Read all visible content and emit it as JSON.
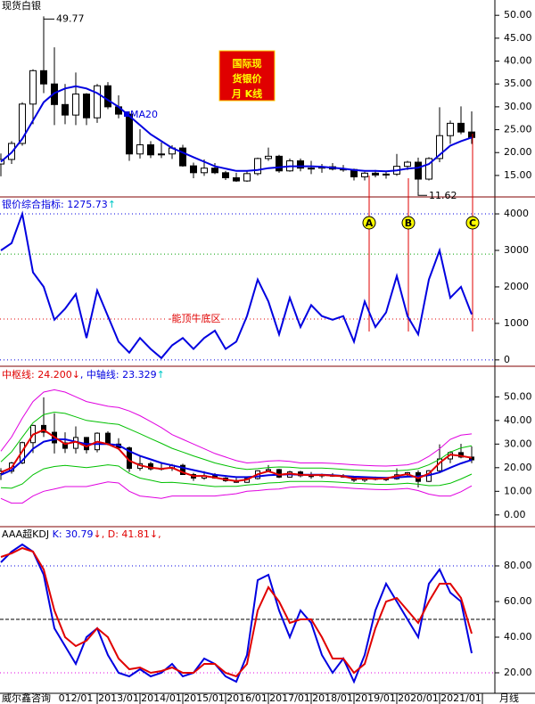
{
  "chart_data": [
    {
      "type": "candlestick",
      "title": "现货白银",
      "open": [
        17.5,
        18.5,
        22,
        30.6,
        37.9,
        35,
        30.5,
        28.2,
        32.8,
        27.6,
        34.6,
        30,
        28.4,
        19.7,
        21.7,
        19.5,
        19.7,
        21,
        17.1,
        15.6,
        16.6,
        15.6,
        14.5,
        13.8,
        15.4,
        18.7,
        19.2,
        16,
        18.2,
        16.6,
        16.6,
        16.9,
        16.4,
        16.3,
        14.7,
        15.5,
        15.1,
        15.3,
        17,
        17.9,
        14.2,
        18.7,
        23.7,
        26.4,
        24.5
      ],
      "high": [
        19.8,
        22.5,
        31,
        38.2,
        49.77,
        43,
        35,
        37.5,
        33,
        35,
        35.4,
        32.5,
        29,
        25.1,
        22.5,
        22.2,
        21.6,
        21.7,
        17.8,
        18.5,
        17.7,
        16,
        15.6,
        16,
        18.9,
        21.1,
        19.5,
        18.7,
        18.7,
        18.2,
        17.5,
        17.7,
        17.3,
        16.5,
        15.8,
        16.2,
        15.9,
        19.7,
        18.2,
        18.9,
        19,
        29.9,
        27,
        30.1,
        29
      ],
      "low": [
        14.8,
        17.5,
        21.5,
        26.2,
        33,
        26,
        26.2,
        26,
        26,
        26.5,
        29.5,
        27.5,
        18.2,
        18.7,
        18.8,
        18.8,
        18.6,
        16.9,
        14.4,
        14.9,
        15.3,
        14,
        13.6,
        13.6,
        15,
        18.2,
        15.6,
        15.8,
        15.9,
        15.3,
        15.6,
        16.1,
        15.8,
        13.9,
        13.9,
        14.6,
        14.3,
        14.9,
        16.2,
        11.62,
        13.9,
        17.9,
        21.9,
        24,
        21.9
      ],
      "close": [
        18.5,
        22,
        30.6,
        37.9,
        35,
        30.5,
        28.2,
        32.8,
        27.6,
        34.6,
        30,
        28.4,
        19.7,
        21.7,
        19.5,
        19.7,
        21,
        17.1,
        15.6,
        16.6,
        15.6,
        14.5,
        13.8,
        15.4,
        18.7,
        19.2,
        16,
        18.2,
        16.6,
        16.6,
        16.9,
        16.4,
        16.3,
        14.7,
        15.5,
        15.1,
        15.3,
        17,
        17.9,
        14.2,
        18.7,
        23.7,
        26.4,
        24.5,
        23.3
      ],
      "ma": {
        "name": "MA20",
        "color": "#0000e0",
        "values": [
          18,
          20,
          23,
          27,
          31,
          33,
          34,
          34.5,
          34,
          33,
          31.5,
          30,
          28,
          26,
          24,
          22.5,
          21,
          20,
          19,
          18,
          17,
          16.5,
          16,
          16,
          16.2,
          16.6,
          16.8,
          17,
          17,
          17,
          16.9,
          16.7,
          16.5,
          16.2,
          16,
          16,
          15.9,
          16.1,
          16.5,
          16.7,
          17.5,
          19.5,
          21.5,
          22.5,
          23.3
        ]
      },
      "badge": [
        "国际现",
        "货银价",
        "月 K线"
      ],
      "markers": [
        "A",
        "B",
        "C"
      ],
      "ylim": [
        10.5,
        51.4
      ],
      "yticks": [
        {
          "value": 15,
          "label": "15.00"
        },
        {
          "value": 20,
          "label": "20.00"
        },
        {
          "value": 25,
          "label": "25.00"
        },
        {
          "value": 30,
          "label": "30.00"
        },
        {
          "value": 35,
          "label": "35.00"
        },
        {
          "value": 40,
          "label": "40.00"
        },
        {
          "value": 45,
          "label": "45.00"
        },
        {
          "value": 50,
          "label": "50.00"
        }
      ]
    },
    {
      "type": "line",
      "title_parts": [
        {
          "text": "银价综合指标: 1275.73",
          "color": "#0000e0"
        },
        {
          "text": "↑",
          "color": "#00c8c8"
        }
      ],
      "series": [
        {
          "color": "#0000e0",
          "values": [
            3000,
            3200,
            4000,
            2400,
            2000,
            1100,
            1400,
            1800,
            600,
            1900,
            1200,
            500,
            200,
            600,
            300,
            50,
            400,
            600,
            300,
            600,
            800,
            300,
            500,
            1200,
            2200,
            1600,
            700,
            1700,
            900,
            1500,
            1200,
            1100,
            1200,
            500,
            1600,
            900,
            1300,
            2300,
            1200,
            700,
            2200,
            3000,
            1700,
            2000,
            1250
          ]
        }
      ],
      "zone_label": "-能顶牛底区-",
      "hlines": [
        {
          "value": 4000,
          "color": "#0000e0"
        },
        {
          "value": 2900,
          "color": "#00a000"
        },
        {
          "value": 1120,
          "color": "#e00000"
        },
        {
          "value": 0,
          "color": "#0000e0"
        }
      ],
      "ylim": [
        -150,
        4440
      ],
      "yticks": [
        0,
        1000,
        2000,
        3000,
        4000
      ]
    },
    {
      "type": "line",
      "overlay_candles": true,
      "title_parts": [
        {
          "text": "中枢线: 24.200",
          "color": "#e00000"
        },
        {
          "text": "↓",
          "color": "#e00000"
        },
        {
          "text": ", 中轴线: 23.329",
          "color": "#0000e0"
        },
        {
          "text": "↑",
          "color": "#00c8c8"
        }
      ],
      "series": [
        {
          "color": "#e000e0",
          "values": [
            27,
            33,
            41,
            48,
            52,
            53,
            52,
            50,
            48,
            47,
            46,
            45.5,
            44,
            42,
            39.5,
            37,
            34,
            32,
            30,
            28,
            26,
            24.5,
            23,
            22,
            22.3,
            22.8,
            23,
            22.7,
            22,
            22,
            22,
            21.8,
            21.5,
            21.2,
            21,
            20.8,
            20.7,
            20.9,
            21.2,
            22.3,
            24.8,
            28,
            32,
            33.8,
            34.3
          ]
        },
        {
          "color": "#e000e0",
          "values": [
            7,
            5,
            5,
            8,
            10,
            11,
            12,
            12,
            12,
            13,
            14,
            13.5,
            10,
            8,
            7.5,
            7,
            8,
            8,
            8,
            8,
            8,
            8.5,
            9,
            10,
            10.3,
            10.8,
            11,
            11.7,
            12,
            12,
            12,
            11.8,
            11.5,
            11.2,
            11,
            10.8,
            10.7,
            10.9,
            11.2,
            10.3,
            8.8,
            8,
            8,
            9.8,
            12.3
          ]
        },
        {
          "color": "#00c000",
          "values": [
            22.5,
            26.7,
            32.9,
            39,
            42.5,
            43.5,
            43,
            41.5,
            40,
            39.4,
            38.8,
            38.3,
            36.4,
            34.4,
            32.3,
            30.3,
            28.2,
            26.6,
            25,
            23.5,
            22,
            20.9,
            19.9,
            19.3,
            19.6,
            20.1,
            20.3,
            20.2,
            19.8,
            19.8,
            19.8,
            19.6,
            19.3,
            19,
            18.8,
            18.6,
            18.5,
            18.7,
            19,
            19.6,
            21.2,
            23.5,
            26.6,
            28.4,
            29.3
          ]
        },
        {
          "color": "#00c000",
          "values": [
            11.5,
            11.3,
            13.1,
            17,
            19.5,
            20.5,
            21,
            20.5,
            20,
            20.6,
            21.2,
            20.7,
            17.6,
            15.6,
            14.7,
            13.7,
            13.8,
            13.4,
            13,
            12.5,
            12,
            12.1,
            12.1,
            12.7,
            13,
            13.5,
            13.7,
            14.2,
            14.2,
            14.2,
            14.2,
            14,
            13.7,
            13.4,
            13.2,
            13,
            12.9,
            13.1,
            13.4,
            13,
            12.4,
            12.5,
            13.4,
            15.2,
            17.3
          ]
        },
        {
          "color": "#0000e0",
          "values": [
            17,
            19,
            23,
            28,
            31,
            32,
            32,
            31,
            30,
            30,
            30,
            29.5,
            27,
            25,
            23.5,
            22,
            21,
            20,
            19,
            18,
            17,
            16.5,
            16,
            16,
            16.3,
            16.8,
            17,
            17.2,
            17,
            17,
            17,
            16.8,
            16.5,
            16.2,
            16,
            15.8,
            15.7,
            15.9,
            16.2,
            16.3,
            16.8,
            18,
            20,
            21.8,
            23.3
          ]
        },
        {
          "color": "#e00000",
          "values": [
            18,
            20,
            27,
            34,
            36,
            33,
            30,
            31,
            29,
            31,
            30,
            28,
            23,
            21,
            20,
            19.5,
            20,
            18,
            16.5,
            16.5,
            15.8,
            15,
            14.3,
            15,
            17.2,
            18.5,
            17,
            17.5,
            17,
            16.8,
            16.9,
            16.6,
            16.4,
            15.3,
            15.4,
            15.3,
            15.4,
            16.5,
            17.3,
            15.5,
            17.5,
            22,
            25.5,
            25,
            24.2
          ]
        }
      ],
      "ylim": [
        -4.6,
        62.2
      ],
      "yticks": [
        {
          "value": 0,
          "label": "0.00"
        },
        {
          "value": 10,
          "label": "10.00"
        },
        {
          "value": 20,
          "label": "20.00"
        },
        {
          "value": 30,
          "label": "30.00"
        },
        {
          "value": 40,
          "label": "40.00"
        },
        {
          "value": 50,
          "label": "50.00"
        }
      ]
    },
    {
      "type": "line",
      "title_parts": [
        {
          "text": "AAA超KDJ",
          "color": "#000000"
        },
        {
          "text": " K: 30.79",
          "color": "#0000e0"
        },
        {
          "text": "↓",
          "color": "#e00000"
        },
        {
          "text": ", D: 41.81",
          "color": "#e00000"
        },
        {
          "text": "↓,",
          "color": "#e00000"
        }
      ],
      "categories": [
        null,
        null,
        null,
        null,
        null,
        null,
        null,
        "012/01",
        null,
        null,
        null,
        "2013/01",
        null,
        null,
        null,
        "2014/01",
        null,
        null,
        null,
        "2015/01",
        null,
        null,
        null,
        "2016/01",
        null,
        null,
        null,
        "2017/01",
        null,
        null,
        null,
        "2018/01",
        null,
        null,
        null,
        "2019/01",
        null,
        null,
        null,
        "2020/01",
        null,
        null,
        null,
        "2021/01",
        null
      ],
      "series": [
        {
          "color": "#0000e0",
          "values": [
            82,
            88,
            92,
            88,
            75,
            45,
            35,
            25,
            40,
            45,
            30,
            20,
            18,
            22,
            18,
            20,
            25,
            18,
            20,
            28,
            25,
            18,
            15,
            30,
            72,
            75,
            55,
            40,
            55,
            48,
            30,
            20,
            28,
            15,
            30,
            55,
            70,
            60,
            50,
            40,
            70,
            78,
            65,
            60,
            31
          ]
        },
        {
          "color": "#e00000",
          "values": [
            85,
            87,
            90,
            88,
            78,
            55,
            40,
            35,
            38,
            45,
            40,
            28,
            22,
            23,
            20,
            21,
            23,
            20,
            20,
            25,
            25,
            20,
            18,
            25,
            55,
            68,
            60,
            48,
            50,
            50,
            40,
            28,
            28,
            20,
            25,
            45,
            60,
            62,
            55,
            48,
            60,
            70,
            70,
            62,
            42
          ]
        }
      ],
      "hlines": [
        {
          "value": 80,
          "color": "#0000e0"
        },
        {
          "value": 50,
          "color": "#000000"
        },
        {
          "value": 20,
          "color": "#e000e0"
        }
      ],
      "ylim": [
        8.5,
        101.5
      ],
      "yticks": [
        {
          "value": 20,
          "label": "20.00"
        },
        {
          "value": 40,
          "label": "40.00"
        },
        {
          "value": 60,
          "label": "60.00"
        },
        {
          "value": 80,
          "label": "80.00"
        }
      ]
    }
  ],
  "footer": {
    "source": "威尔鑫咨询",
    "period": "月线"
  }
}
